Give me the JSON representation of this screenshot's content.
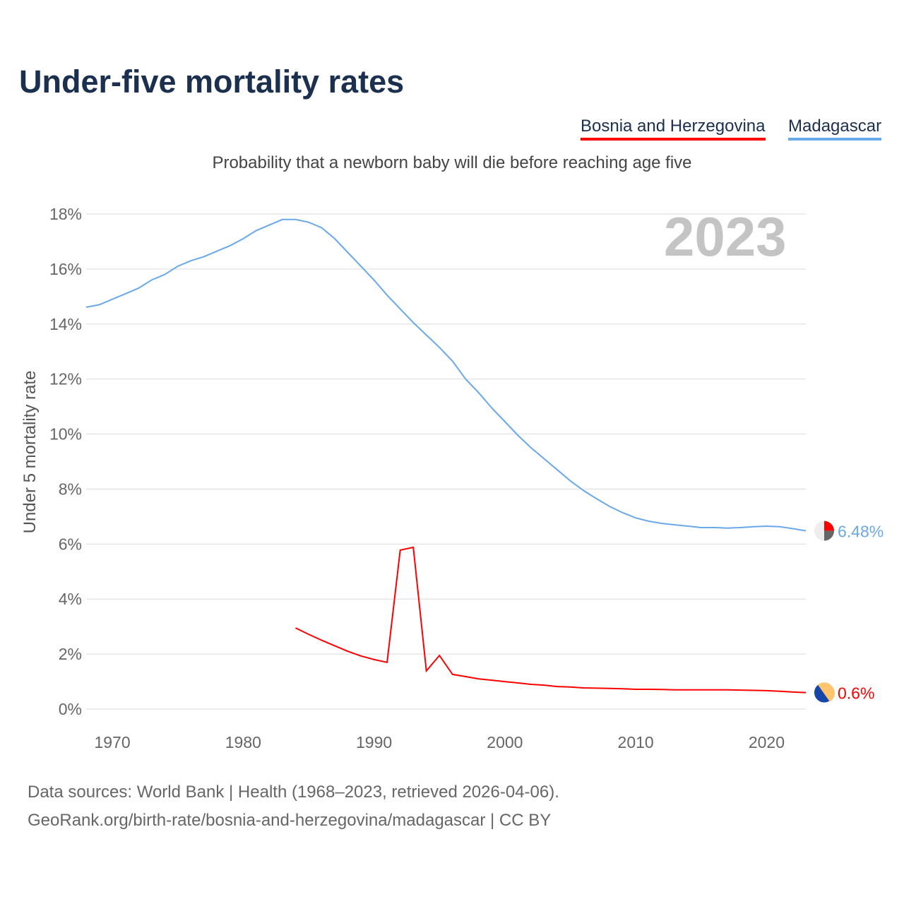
{
  "title": "Under-five mortality rates",
  "subtitle": "Probability that a newborn baby will die before reaching age five",
  "year_label": "2023",
  "footer": {
    "line1": "Data sources: World Bank | Health (1968–2023, retrieved 2026-04-06).",
    "line2": "GeoRank.org/birth-rate/bosnia-and-herzegovina/madagascar | CC BY"
  },
  "chart_data": {
    "type": "line",
    "title": "Under-five mortality rates",
    "xlabel": "",
    "ylabel": "Under 5 mortality rate",
    "xlim": [
      1968,
      2023
    ],
    "ylim": [
      0,
      18
    ],
    "xticks": [
      1970,
      1980,
      1990,
      2000,
      2010,
      2020
    ],
    "yticks": [
      0,
      2,
      4,
      6,
      8,
      10,
      12,
      14,
      16,
      18
    ],
    "ytick_labels": [
      "0%",
      "2%",
      "4%",
      "6%",
      "8%",
      "10%",
      "12%",
      "14%",
      "16%",
      "18%"
    ],
    "grid": true,
    "legend_position": "top-right",
    "series": [
      {
        "name": "Bosnia and Herzegovina",
        "color": "#ff0000",
        "end_label": "0.6%",
        "x": [
          1984,
          1985,
          1986,
          1987,
          1988,
          1989,
          1990,
          1991,
          1992,
          1993,
          1994,
          1995,
          1996,
          1997,
          1998,
          1999,
          2000,
          2001,
          2002,
          2003,
          2004,
          2005,
          2006,
          2007,
          2008,
          2009,
          2010,
          2011,
          2012,
          2013,
          2014,
          2015,
          2016,
          2017,
          2018,
          2019,
          2020,
          2021,
          2022,
          2023
        ],
        "values": [
          2.95,
          2.72,
          2.5,
          2.3,
          2.1,
          1.93,
          1.8,
          1.7,
          5.78,
          5.88,
          1.39,
          1.95,
          1.26,
          1.18,
          1.1,
          1.05,
          1.0,
          0.95,
          0.9,
          0.87,
          0.82,
          0.8,
          0.77,
          0.76,
          0.75,
          0.74,
          0.72,
          0.72,
          0.71,
          0.7,
          0.7,
          0.7,
          0.7,
          0.7,
          0.69,
          0.68,
          0.67,
          0.65,
          0.62,
          0.6
        ]
      },
      {
        "name": "Madagascar",
        "color": "#6aa9e9",
        "end_label": "6.48%",
        "x": [
          1968,
          1969,
          1970,
          1971,
          1972,
          1973,
          1974,
          1975,
          1976,
          1977,
          1978,
          1979,
          1980,
          1981,
          1982,
          1983,
          1984,
          1985,
          1986,
          1987,
          1988,
          1989,
          1990,
          1991,
          1992,
          1993,
          1994,
          1995,
          1996,
          1997,
          1998,
          1999,
          2000,
          2001,
          2002,
          2003,
          2004,
          2005,
          2006,
          2007,
          2008,
          2009,
          2010,
          2011,
          2012,
          2013,
          2014,
          2015,
          2016,
          2017,
          2018,
          2019,
          2020,
          2021,
          2022,
          2023
        ],
        "values": [
          14.61,
          14.7,
          14.9,
          15.1,
          15.3,
          15.6,
          15.8,
          16.1,
          16.3,
          16.45,
          16.65,
          16.85,
          17.1,
          17.4,
          17.6,
          17.8,
          17.8,
          17.7,
          17.5,
          17.1,
          16.6,
          16.1,
          15.6,
          15.05,
          14.55,
          14.05,
          13.6,
          13.15,
          12.65,
          12.0,
          11.5,
          10.95,
          10.45,
          9.95,
          9.5,
          9.1,
          8.7,
          8.3,
          7.95,
          7.65,
          7.37,
          7.14,
          6.95,
          6.83,
          6.75,
          6.7,
          6.65,
          6.6,
          6.6,
          6.58,
          6.6,
          6.63,
          6.65,
          6.63,
          6.56,
          6.48
        ]
      }
    ]
  }
}
